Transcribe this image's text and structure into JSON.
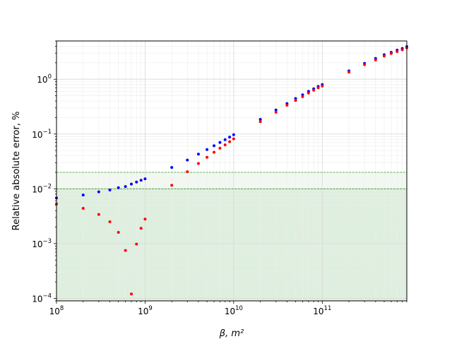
{
  "chart_data": {
    "type": "scatter",
    "title": "",
    "xlabel": "β, m²",
    "ylabel": "Relative absolute error, %",
    "x_scale": "log",
    "y_scale": "log",
    "xlim": [
      100000000.0,
      900000000000.0
    ],
    "ylim": [
      9e-05,
      5
    ],
    "grid": true,
    "x_tick_labels": [
      {
        "value": 100000000.0,
        "base": "10",
        "exp": "8"
      },
      {
        "value": 1000000000.0,
        "base": "10",
        "exp": "9"
      },
      {
        "value": 10000000000.0,
        "base": "10",
        "exp": "10"
      },
      {
        "value": 100000000000.0,
        "base": "10",
        "exp": "11"
      }
    ],
    "y_tick_labels": [
      {
        "value": 0.0001,
        "base": "10",
        "exp": "−4"
      },
      {
        "value": 0.001,
        "base": "10",
        "exp": "−3"
      },
      {
        "value": 0.01,
        "base": "10",
        "exp": "−2"
      },
      {
        "value": 0.1,
        "base": "10",
        "exp": "−1"
      },
      {
        "value": 1,
        "base": "10",
        "exp": "0"
      }
    ],
    "reference_lines": [
      {
        "y": 0.02,
        "color": "#2ca02c",
        "style": "dashed"
      },
      {
        "y": 0.01,
        "color": "#2ca02c",
        "style": "dashed"
      }
    ],
    "shaded_regions": [
      {
        "y_from": 0.01,
        "y_to": 0.02,
        "color": "#f2f8f1"
      },
      {
        "y_from": 9e-05,
        "y_to": 0.01,
        "color": "#dfefdf"
      }
    ],
    "series": [
      {
        "color": "#0000ff",
        "points": [
          [
            100000000.0,
            0.0068
          ],
          [
            200000000.0,
            0.0077
          ],
          [
            300000000.0,
            0.0088
          ],
          [
            400000000.0,
            0.0095
          ],
          [
            500000000.0,
            0.0105
          ],
          [
            600000000.0,
            0.011
          ],
          [
            700000000.0,
            0.0122
          ],
          [
            800000000.0,
            0.0133
          ],
          [
            900000000.0,
            0.0143
          ],
          [
            1000000000.0,
            0.0152
          ],
          [
            2000000000.0,
            0.0245
          ],
          [
            3000000000.0,
            0.0335
          ],
          [
            4000000000.0,
            0.043
          ],
          [
            5000000000.0,
            0.052
          ],
          [
            6000000000.0,
            0.061
          ],
          [
            7000000000.0,
            0.07
          ],
          [
            8000000000.0,
            0.079
          ],
          [
            9000000000.0,
            0.088
          ],
          [
            10000000000.0,
            0.097
          ],
          [
            20000000000.0,
            0.185
          ],
          [
            30000000000.0,
            0.275
          ],
          [
            40000000000.0,
            0.36
          ],
          [
            50000000000.0,
            0.445
          ],
          [
            60000000000.0,
            0.52
          ],
          [
            70000000000.0,
            0.6
          ],
          [
            80000000000.0,
            0.67
          ],
          [
            90000000000.0,
            0.74
          ],
          [
            100000000000.0,
            0.8
          ],
          [
            200000000000.0,
            1.42
          ],
          [
            300000000000.0,
            1.95
          ],
          [
            400000000000.0,
            2.4
          ],
          [
            500000000000.0,
            2.8
          ],
          [
            600000000000.0,
            3.1
          ],
          [
            700000000000.0,
            3.4
          ],
          [
            800000000000.0,
            3.65
          ],
          [
            900000000000.0,
            3.95
          ]
        ]
      },
      {
        "color": "#ff0000",
        "points": [
          [
            100000000.0,
            0.0053
          ],
          [
            200000000.0,
            0.0044
          ],
          [
            300000000.0,
            0.0034
          ],
          [
            400000000.0,
            0.0025
          ],
          [
            500000000.0,
            0.0016
          ],
          [
            600000000.0,
            0.00075
          ],
          [
            700000000.0,
            0.00012
          ],
          [
            800000000.0,
            0.00098
          ],
          [
            900000000.0,
            0.0019
          ],
          [
            1000000000.0,
            0.0028
          ],
          [
            2000000000.0,
            0.0116
          ],
          [
            3000000000.0,
            0.0205
          ],
          [
            4000000000.0,
            0.029
          ],
          [
            5000000000.0,
            0.0375
          ],
          [
            6000000000.0,
            0.0465
          ],
          [
            7000000000.0,
            0.055
          ],
          [
            8000000000.0,
            0.0635
          ],
          [
            9000000000.0,
            0.0725
          ],
          [
            10000000000.0,
            0.0815
          ],
          [
            20000000000.0,
            0.168
          ],
          [
            30000000000.0,
            0.25
          ],
          [
            40000000000.0,
            0.335
          ],
          [
            50000000000.0,
            0.41
          ],
          [
            60000000000.0,
            0.48
          ],
          [
            70000000000.0,
            0.56
          ],
          [
            80000000000.0,
            0.63
          ],
          [
            90000000000.0,
            0.7
          ],
          [
            100000000000.0,
            0.75
          ],
          [
            200000000000.0,
            1.35
          ],
          [
            300000000000.0,
            1.85
          ],
          [
            400000000000.0,
            2.25
          ],
          [
            500000000000.0,
            2.65
          ],
          [
            600000000000.0,
            2.95
          ],
          [
            700000000000.0,
            3.2
          ],
          [
            800000000000.0,
            3.45
          ],
          [
            900000000000.0,
            3.75
          ]
        ]
      }
    ]
  }
}
